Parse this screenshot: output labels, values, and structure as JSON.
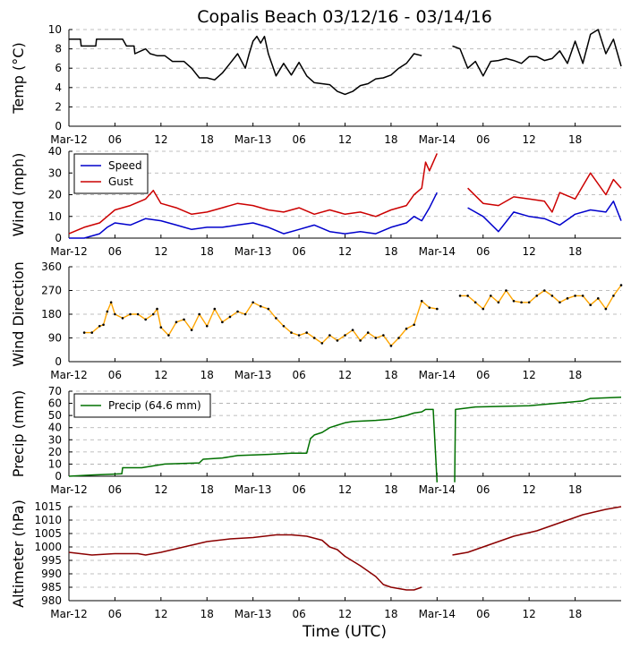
{
  "title": "Copalis Beach 03/12/16 - 03/14/16",
  "xlabel": "Time (UTC)",
  "x_tick_labels": [
    "Mar-12",
    "06",
    "12",
    "18",
    "Mar-13",
    "06",
    "12",
    "18",
    "Mar-14",
    "06",
    "12",
    "18"
  ],
  "colors": {
    "temp": "#000000",
    "speed": "#0000cc",
    "gust": "#cc0000",
    "dir": "#ffa500",
    "precip": "#007000",
    "altimeter": "#8b0000",
    "grid": "#aaaaaa"
  },
  "chart_data": [
    {
      "type": "line",
      "title": "Copalis Beach 03/12/16 - 03/14/16",
      "xlabel": "Time (UTC)",
      "ylabel": "Temp (°C)",
      "x_unit": "hours since Mar-12 00 UTC",
      "xlim": [
        0,
        72
      ],
      "ylim": [
        0,
        10
      ],
      "yticks": [
        0,
        2,
        4,
        6,
        8,
        10
      ],
      "series": [
        {
          "name": "Temp",
          "x": [
            0,
            1.5,
            1.6,
            3.5,
            3.6,
            7,
            7.5,
            8.5,
            8.6,
            10,
            10.6,
            11.5,
            12.5,
            13.5,
            14,
            15,
            16,
            17,
            17.5,
            18,
            19,
            20,
            21,
            22,
            23,
            23.5,
            24,
            24.5,
            25,
            25.5,
            26,
            27,
            28,
            29,
            30,
            31,
            32,
            33,
            34,
            35,
            36,
            37,
            38,
            39,
            40,
            41,
            42,
            43,
            44,
            45,
            46,
            47,
            48,
            49,
            50,
            51,
            52,
            53,
            54,
            55,
            56,
            57,
            58,
            59,
            60,
            61,
            62,
            63,
            64,
            65,
            66,
            67,
            68,
            69,
            70,
            71,
            72
          ],
          "y": [
            9,
            9,
            8.3,
            8.3,
            9,
            9,
            8.3,
            8.3,
            7.5,
            8,
            7.5,
            7.3,
            7.3,
            6.7,
            6.7,
            6.7,
            6,
            5,
            5,
            5,
            4.8,
            5.5,
            6.5,
            7.5,
            6,
            7.5,
            8.8,
            9.3,
            8.6,
            9.3,
            7.5,
            5.2,
            6.5,
            5.3,
            6.6,
            5.2,
            4.5,
            4.4,
            4.3,
            3.6,
            3.3,
            3.6,
            4.2,
            4.4,
            4.9,
            5,
            5.3,
            6,
            6.5,
            7.5,
            7.3,
            null,
            null,
            null,
            8.3,
            8,
            6,
            6.7,
            5.2,
            6.7,
            6.8,
            7,
            6.8,
            6.5,
            7.2,
            7.2,
            6.8,
            7,
            7.8,
            6.5,
            8.8,
            6.5,
            9.5,
            10,
            7.5,
            9,
            6.2
          ]
        }
      ]
    },
    {
      "type": "line",
      "ylabel": "Wind (mph)",
      "xlim": [
        0,
        72
      ],
      "ylim": [
        0,
        40
      ],
      "yticks": [
        0,
        10,
        20,
        30,
        40
      ],
      "legend": {
        "placement": "top-left",
        "entries": [
          "Speed",
          "Gust"
        ]
      },
      "series": [
        {
          "name": "Speed",
          "x": [
            0,
            2,
            4,
            5,
            6,
            8,
            10,
            12,
            14,
            16,
            18,
            20,
            22,
            24,
            26,
            28,
            30,
            32,
            34,
            36,
            38,
            40,
            42,
            44,
            45,
            46,
            47,
            48,
            50,
            52,
            54,
            56,
            58,
            60,
            62,
            64,
            66,
            68,
            70,
            71,
            72
          ],
          "y": [
            0,
            0,
            2,
            5,
            7,
            6,
            9,
            8,
            6,
            4,
            5,
            5,
            6,
            7,
            5,
            2,
            4,
            6,
            3,
            2,
            3,
            2,
            5,
            7,
            10,
            8,
            14,
            21,
            null,
            14,
            10,
            3,
            12,
            10,
            9,
            6,
            11,
            13,
            12,
            17,
            8
          ]
        },
        {
          "name": "Gust",
          "x": [
            0,
            2,
            4,
            5,
            6,
            8,
            10,
            11,
            12,
            14,
            16,
            18,
            20,
            22,
            24,
            26,
            28,
            30,
            32,
            34,
            36,
            38,
            40,
            42,
            44,
            45,
            46,
            46.5,
            47,
            48,
            50,
            52,
            54,
            56,
            58,
            60,
            62,
            63,
            64,
            66,
            68,
            70,
            71,
            72
          ],
          "y": [
            2,
            5,
            7,
            10,
            13,
            15,
            18,
            22,
            16,
            14,
            11,
            12,
            14,
            16,
            15,
            13,
            12,
            14,
            11,
            13,
            11,
            12,
            10,
            13,
            15,
            20,
            23,
            35,
            31,
            39,
            null,
            23,
            16,
            15,
            19,
            18,
            17,
            12,
            21,
            18,
            30,
            20,
            27,
            23
          ]
        }
      ]
    },
    {
      "type": "scatter",
      "ylabel": "Wind Direction",
      "xlim": [
        0,
        72
      ],
      "ylim": [
        0,
        360
      ],
      "yticks": [
        0,
        90,
        180,
        270,
        360
      ],
      "series": [
        {
          "name": "Wind Direction",
          "x": [
            2,
            3,
            4,
            4.5,
            5,
            5.5,
            6,
            7,
            8,
            9,
            10,
            11,
            11.5,
            12,
            13,
            14,
            15,
            16,
            17,
            18,
            19,
            20,
            21,
            22,
            23,
            24,
            25,
            26,
            27,
            28,
            29,
            30,
            31,
            32,
            33,
            34,
            35,
            36,
            37,
            38,
            39,
            40,
            41,
            42,
            43,
            44,
            45,
            46,
            47,
            48,
            50,
            51,
            52,
            53,
            54,
            55,
            56,
            57,
            58,
            59,
            60,
            61,
            62,
            63,
            64,
            65,
            66,
            67,
            68,
            69,
            70,
            71,
            72
          ],
          "y": [
            110,
            110,
            135,
            140,
            190,
            225,
            180,
            165,
            180,
            180,
            160,
            180,
            200,
            130,
            100,
            150,
            160,
            120,
            180,
            135,
            200,
            150,
            170,
            190,
            180,
            225,
            210,
            200,
            165,
            135,
            110,
            100,
            110,
            90,
            70,
            100,
            80,
            100,
            120,
            80,
            110,
            90,
            100,
            60,
            90,
            125,
            140,
            230,
            205,
            200,
            null,
            250,
            250,
            225,
            200,
            250,
            225,
            270,
            230,
            225,
            225,
            250,
            270,
            250,
            225,
            240,
            250,
            250,
            215,
            240,
            200,
            250,
            290
          ]
        }
      ]
    },
    {
      "type": "line",
      "ylabel": "Precip (mm)",
      "xlim": [
        0,
        72
      ],
      "ylim": [
        0,
        70
      ],
      "yticks": [
        0,
        10,
        20,
        30,
        40,
        50,
        60,
        70
      ],
      "legend": {
        "placement": "top-left",
        "entries": [
          "Precip (64.6 mm)"
        ]
      },
      "series": [
        {
          "name": "Precip (64.6 mm)",
          "x": [
            0,
            3,
            6.9,
            7,
            9.5,
            10.5,
            12.5,
            17,
            17.5,
            20,
            22,
            26,
            29,
            31,
            31.5,
            32,
            33,
            34,
            35,
            36,
            37,
            40,
            42,
            44,
            45,
            46,
            46.5,
            47,
            47.5,
            48,
            49,
            50,
            50.3,
            50.4,
            53,
            60,
            67,
            68,
            72
          ],
          "y": [
            0,
            1,
            2,
            7,
            7,
            8,
            10,
            11,
            14,
            15,
            17,
            18,
            19,
            19,
            31,
            34,
            36,
            40,
            42,
            44,
            45,
            46,
            47,
            50,
            52,
            53,
            55,
            55,
            55,
            -5,
            null,
            null,
            -5,
            55,
            57,
            58,
            62,
            64,
            65
          ]
        }
      ]
    },
    {
      "type": "line",
      "ylabel": "Altimeter (hPa)",
      "xlim": [
        0,
        72
      ],
      "ylim": [
        980,
        1015
      ],
      "yticks": [
        980,
        985,
        990,
        995,
        1000,
        1005,
        1010,
        1015
      ],
      "series": [
        {
          "name": "Altimeter",
          "x": [
            0,
            3,
            6,
            9,
            10,
            12,
            15,
            18,
            21,
            24,
            27,
            29,
            31,
            33,
            34,
            35,
            36,
            38,
            40,
            41,
            42,
            44,
            45,
            46,
            47,
            48,
            50,
            52,
            55,
            58,
            61,
            64,
            67,
            70,
            72
          ],
          "y": [
            998,
            997,
            997.5,
            997.5,
            997,
            998,
            1000,
            1002,
            1003,
            1003.5,
            1004.5,
            1004.5,
            1004,
            1002.5,
            1000,
            999,
            996.5,
            993,
            989,
            986,
            985,
            984,
            984,
            985,
            null,
            null,
            997,
            998,
            1001,
            1004,
            1006,
            1009,
            1012,
            1014,
            1015
          ]
        }
      ]
    }
  ]
}
